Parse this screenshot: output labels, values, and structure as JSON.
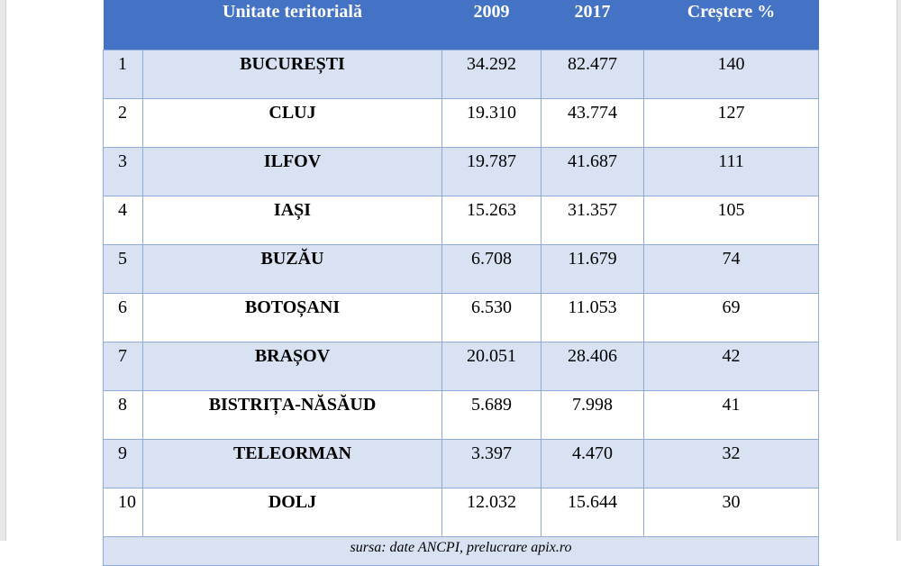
{
  "table": {
    "headers": {
      "rank": "",
      "unit": "Unitate teritorială",
      "y2009": "2009",
      "y2017": "2017",
      "growth": "Creștere %"
    },
    "rows": [
      {
        "rank": "1",
        "unit": "BUCUREȘTI",
        "y2009": "34.292",
        "y2017": "82.477",
        "growth": "140"
      },
      {
        "rank": "2",
        "unit": "CLUJ",
        "y2009": "19.310",
        "y2017": "43.774",
        "growth": "127"
      },
      {
        "rank": "3",
        "unit": "ILFOV",
        "y2009": "19.787",
        "y2017": "41.687",
        "growth": "111"
      },
      {
        "rank": "4",
        "unit": "IAȘI",
        "y2009": "15.263",
        "y2017": "31.357",
        "growth": "105"
      },
      {
        "rank": "5",
        "unit": "BUZĂU",
        "y2009": "6.708",
        "y2017": "11.679",
        "growth": "74"
      },
      {
        "rank": "6",
        "unit": "BOTOȘANI",
        "y2009": "6.530",
        "y2017": "11.053",
        "growth": "69"
      },
      {
        "rank": "7",
        "unit": "BRAȘOV",
        "y2009": "20.051",
        "y2017": "28.406",
        "growth": "42"
      },
      {
        "rank": "8",
        "unit": "BISTRIȚA-NĂSĂUD",
        "y2009": "5.689",
        "y2017": "7.998",
        "growth": "41"
      },
      {
        "rank": "9",
        "unit": "TELEORMAN",
        "y2009": "3.397",
        "y2017": "4.470",
        "growth": "32"
      },
      {
        "rank": "10",
        "unit": "DOLJ",
        "y2009": "12.032",
        "y2017": "15.644",
        "growth": "30"
      }
    ],
    "source": "sursa: date ANCPI, prelucrare apix.ro"
  },
  "colors": {
    "header_bg": "#4472c4",
    "band_bg": "#d9e2f3",
    "border": "#8eaadb"
  }
}
